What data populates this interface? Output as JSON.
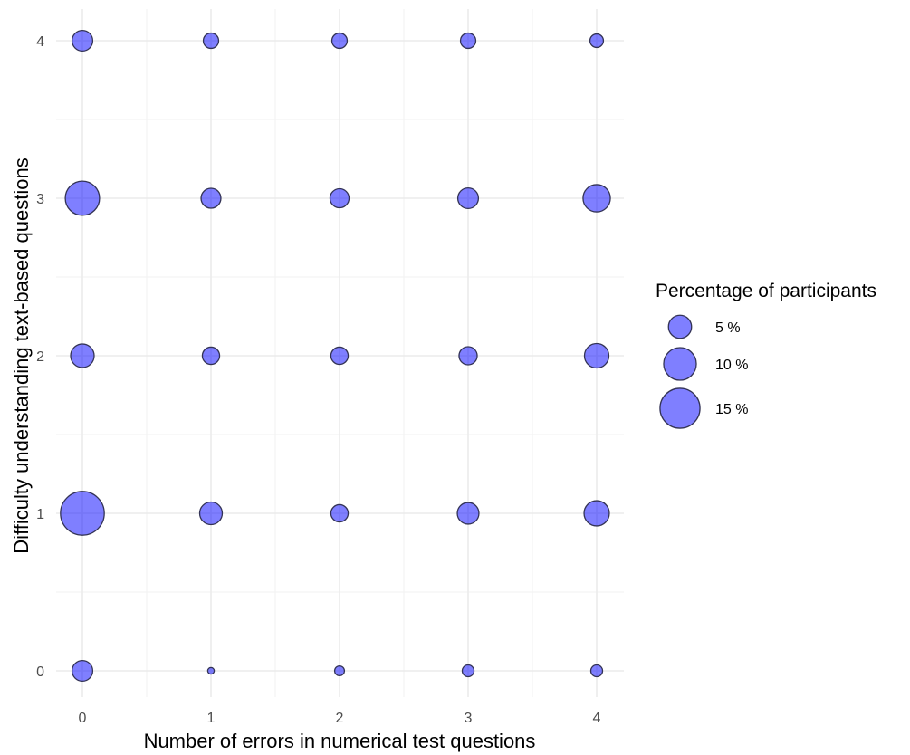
{
  "chart_data": {
    "type": "scatter",
    "subtype": "bubble",
    "title": "",
    "xlabel": "Number of errors in numerical test questions",
    "ylabel": "Difficulty understanding text-based questions",
    "x_ticks": [
      "0",
      "1",
      "2",
      "3",
      "4"
    ],
    "y_ticks": [
      "0",
      "1",
      "2",
      "3",
      "4"
    ],
    "xlim": [
      -0.5,
      4.2
    ],
    "ylim": [
      -0.2,
      4.2
    ],
    "grid": true,
    "color": "#0000ff",
    "size_variable": "Percentage of participants",
    "points": [
      {
        "x": 0,
        "y": 4,
        "pct": 4.0
      },
      {
        "x": 1,
        "y": 4,
        "pct": 2.2
      },
      {
        "x": 2,
        "y": 4,
        "pct": 2.2
      },
      {
        "x": 3,
        "y": 4,
        "pct": 2.2
      },
      {
        "x": 4,
        "y": 4,
        "pct": 1.7
      },
      {
        "x": 0,
        "y": 3,
        "pct": 11.0
      },
      {
        "x": 1,
        "y": 3,
        "pct": 3.7
      },
      {
        "x": 2,
        "y": 3,
        "pct": 3.4
      },
      {
        "x": 3,
        "y": 3,
        "pct": 4.0
      },
      {
        "x": 4,
        "y": 3,
        "pct": 7.0
      },
      {
        "x": 0,
        "y": 2,
        "pct": 5.2
      },
      {
        "x": 1,
        "y": 2,
        "pct": 2.8
      },
      {
        "x": 2,
        "y": 2,
        "pct": 2.8
      },
      {
        "x": 3,
        "y": 2,
        "pct": 3.1
      },
      {
        "x": 4,
        "y": 2,
        "pct": 5.6
      },
      {
        "x": 0,
        "y": 1,
        "pct": 18.0
      },
      {
        "x": 1,
        "y": 1,
        "pct": 4.8
      },
      {
        "x": 2,
        "y": 1,
        "pct": 2.8
      },
      {
        "x": 3,
        "y": 1,
        "pct": 4.4
      },
      {
        "x": 4,
        "y": 1,
        "pct": 6.0
      },
      {
        "x": 0,
        "y": 0,
        "pct": 4.0
      },
      {
        "x": 1,
        "y": 0,
        "pct": 0.4
      },
      {
        "x": 2,
        "y": 0,
        "pct": 0.9
      },
      {
        "x": 3,
        "y": 0,
        "pct": 1.3
      },
      {
        "x": 4,
        "y": 0,
        "pct": 1.3
      }
    ],
    "legend": {
      "title": "Percentage of participants",
      "position": "right",
      "entries": [
        {
          "value": 5,
          "label": "5 %"
        },
        {
          "value": 10,
          "label": "10 %"
        },
        {
          "value": 15,
          "label": "15 %"
        }
      ]
    }
  }
}
